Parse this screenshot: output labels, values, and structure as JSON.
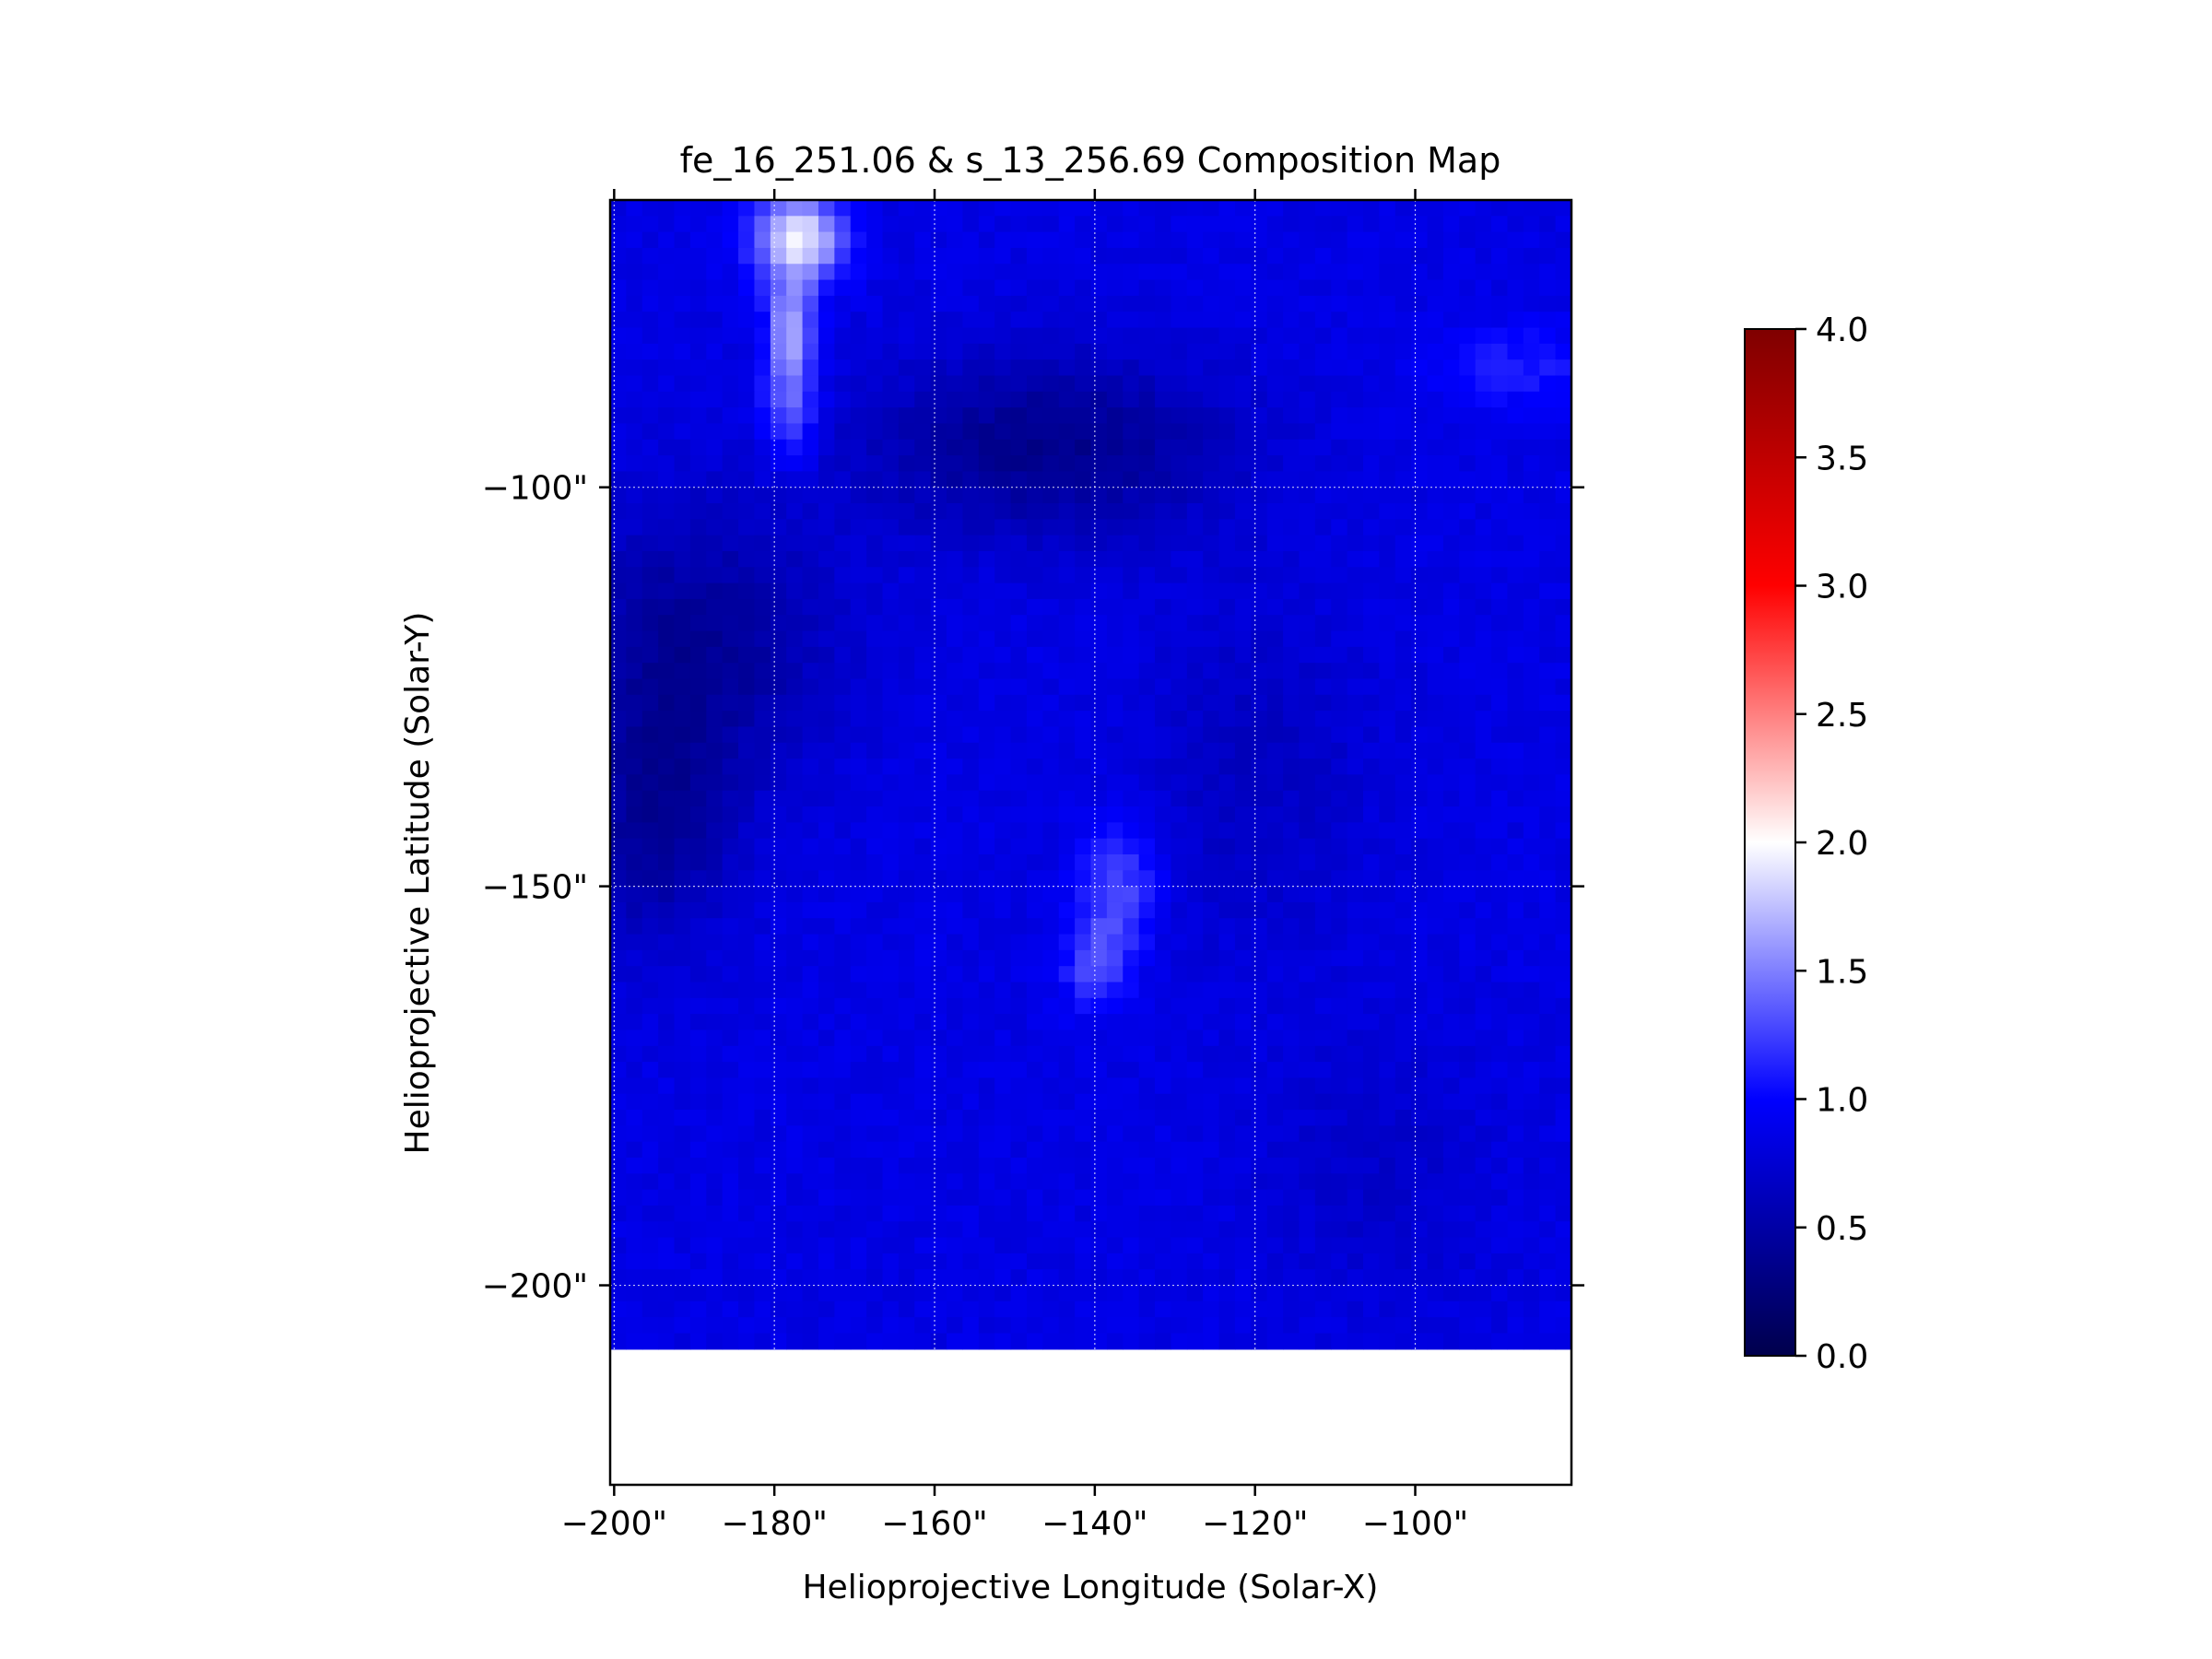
{
  "chart_data": {
    "type": "heatmap",
    "title": "fe_16_251.06 & s_13_256.69 Composition Map",
    "xlabel": "Helioprojective Longitude (Solar-X)",
    "ylabel": "Helioprojective Latitude (Solar-Y)",
    "x_ticks": [
      "−200\"",
      "−180\"",
      "−160\"",
      "−140\"",
      "−120\"",
      "−100\""
    ],
    "x_tick_values": [
      -200,
      -180,
      -160,
      -140,
      -120,
      -100
    ],
    "y_ticks": [
      "−100\"",
      "−150\"",
      "−200\""
    ],
    "y_tick_values": [
      -100,
      -150,
      -200
    ],
    "xlim": [
      -200.5,
      -80.5
    ],
    "ylim": [
      -225,
      -64
    ],
    "data_extent": {
      "x": [
        -200.5,
        -80.5
      ],
      "y": [
        -207.6,
        -64
      ]
    },
    "grid": true,
    "colorbar": {
      "range": [
        0.0,
        4.0
      ],
      "ticks": [
        "0.0",
        "0.5",
        "1.0",
        "1.5",
        "2.0",
        "2.5",
        "3.0",
        "3.5",
        "4.0"
      ],
      "tick_values": [
        0.0,
        0.5,
        1.0,
        1.5,
        2.0,
        2.5,
        3.0,
        3.5,
        4.0
      ],
      "colormap": "seismic",
      "colors": [
        "#00004c",
        "#0000ff",
        "#ffffff",
        "#ff0000",
        "#7f0000"
      ]
    },
    "background_value": 0.85,
    "features": [
      {
        "x": -177,
        "y": -69,
        "value": 1.95,
        "sx": 4,
        "sy": 4
      },
      {
        "x": -178,
        "y": -80,
        "value": 1.6,
        "sx": 2,
        "sy": 4
      },
      {
        "x": -178,
        "y": -90,
        "value": 1.4,
        "sx": 2.5,
        "sy": 5
      },
      {
        "x": -146,
        "y": -95,
        "value": 0.35,
        "sx": 16,
        "sy": 8
      },
      {
        "x": -190,
        "y": -120,
        "value": 0.4,
        "sx": 12,
        "sy": 12
      },
      {
        "x": -195,
        "y": -143,
        "value": 0.45,
        "sx": 7,
        "sy": 10
      },
      {
        "x": -88,
        "y": -85,
        "value": 1.1,
        "sx": 8,
        "sy": 4
      },
      {
        "x": -137,
        "y": -150,
        "value": 1.3,
        "sx": 3.5,
        "sy": 6
      },
      {
        "x": -140,
        "y": -160,
        "value": 1.25,
        "sx": 3,
        "sy": 4
      },
      {
        "x": -120,
        "y": -135,
        "value": 0.65,
        "sx": 10,
        "sy": 15
      },
      {
        "x": -105,
        "y": -185,
        "value": 0.7,
        "sx": 10,
        "sy": 12
      }
    ]
  }
}
